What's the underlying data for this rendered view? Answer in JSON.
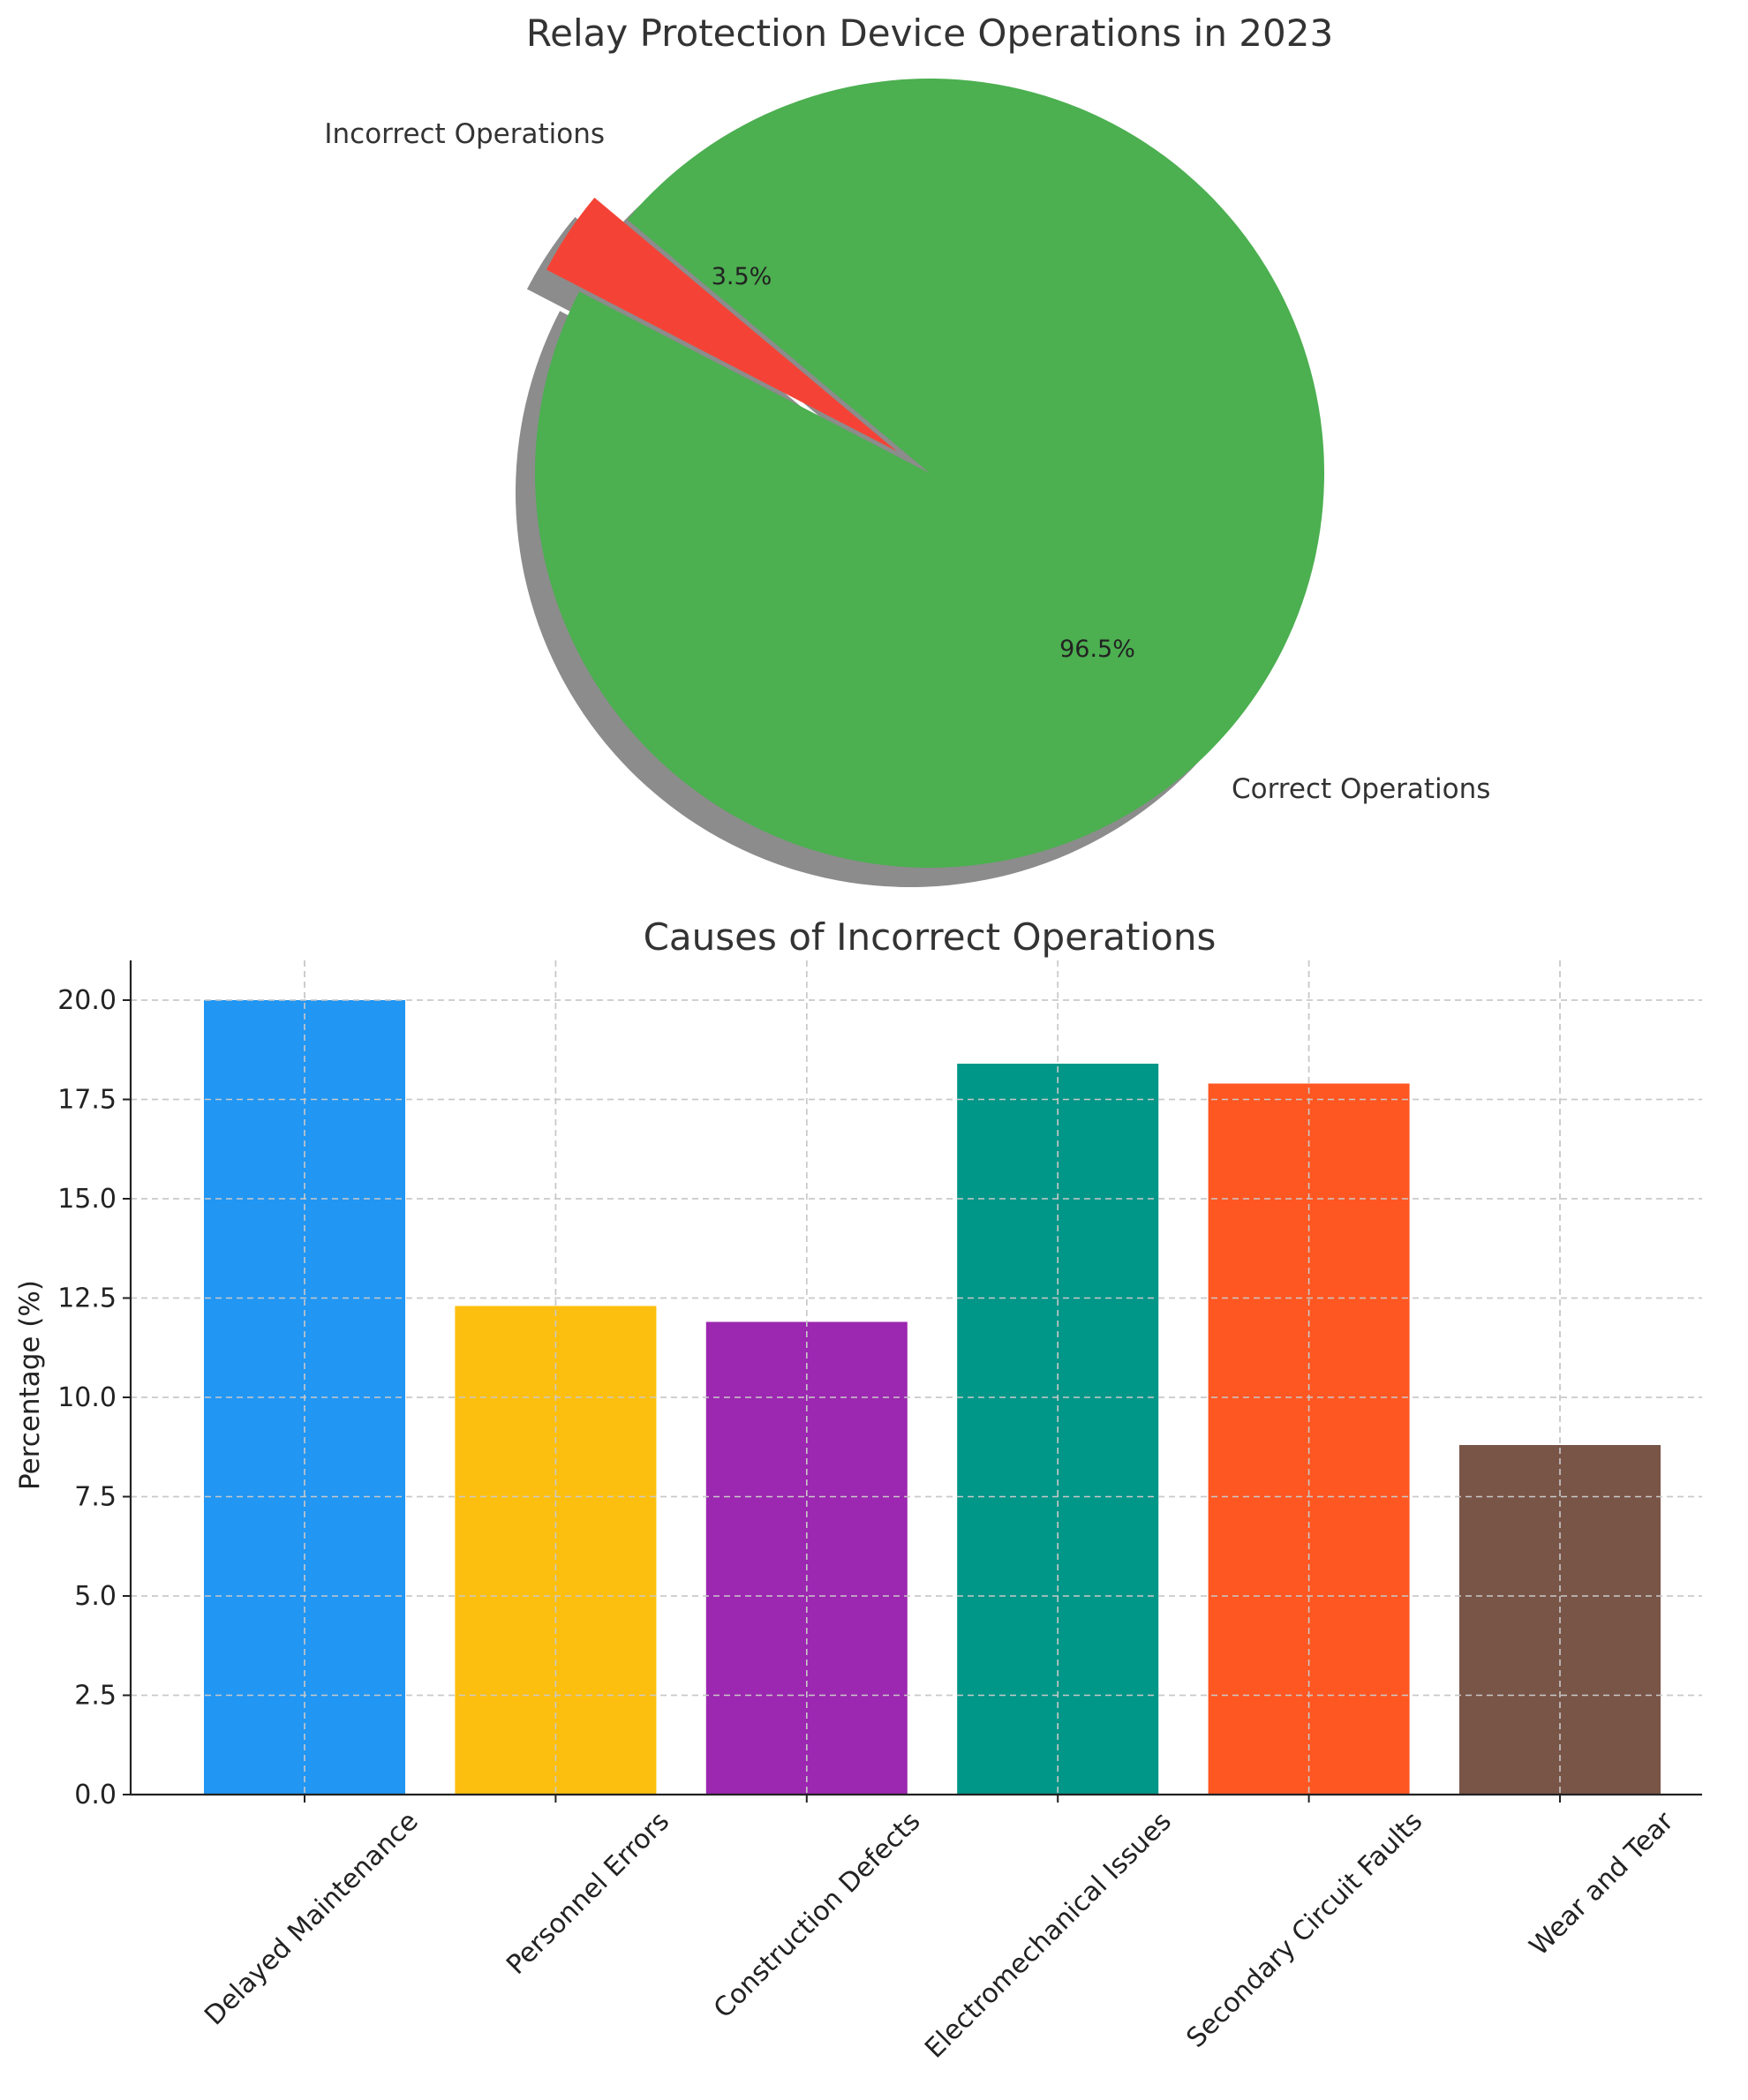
{
  "chart_data": [
    {
      "type": "pie",
      "title": "Relay Protection Device Operations in 2023",
      "labels": [
        "Incorrect Operations",
        "Correct Operations"
      ],
      "values": [
        3.5,
        96.5
      ],
      "pct_labels": [
        "3.5%",
        "96.5%"
      ],
      "colors": [
        "#f44336",
        "#4caf50"
      ],
      "start_angle_deg": 140,
      "explode": [
        0.1,
        0
      ],
      "shadow": true
    },
    {
      "type": "bar",
      "title": "Causes of Incorrect Operations",
      "xlabel": "",
      "ylabel": "Percentage (%)",
      "categories": [
        "Delayed Maintenance",
        "Personnel Errors",
        "Construction Defects",
        "Electromechanical Issues",
        "Secondary Circuit Faults",
        "Wear and Tear"
      ],
      "values": [
        20.0,
        12.3,
        11.9,
        18.4,
        17.9,
        8.8
      ],
      "colors": [
        "#2196f3",
        "#fdbf0f",
        "#9c27b0",
        "#009688",
        "#ff5722",
        "#795548"
      ],
      "ylim": [
        0,
        21
      ],
      "yticks": [
        "0.0",
        "2.5",
        "5.0",
        "7.5",
        "10.0",
        "12.5",
        "15.0",
        "17.5",
        "20.0"
      ],
      "grid": true
    }
  ]
}
